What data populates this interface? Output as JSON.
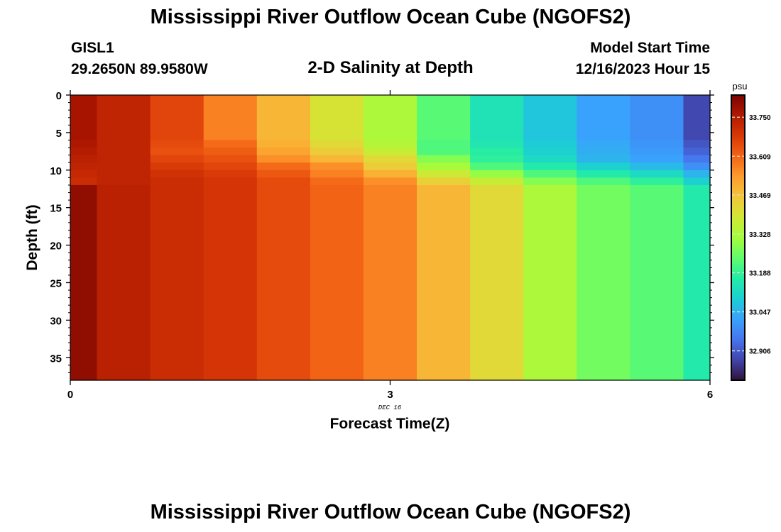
{
  "header": {
    "title": "Mississippi River Outflow Ocean Cube (NGOFS2)",
    "station": "GISL1",
    "coords": "29.2650N  89.9580W",
    "subtitle": "2-D Salinity at Depth",
    "start_label": "Model Start Time",
    "start_value": "12/16/2023 Hour 15"
  },
  "footer": {
    "title": "Mississippi River Outflow Ocean Cube (NGOFS2)"
  },
  "colors": {
    "colormap": [
      "#30123b",
      "#4145ab",
      "#4675ed",
      "#39a2fc",
      "#1bcfd4",
      "#24eca6",
      "#61fc6c",
      "#a4fc3b",
      "#d1e834",
      "#f3c63a",
      "#fe9b2d",
      "#f36315",
      "#d93806",
      "#b11901",
      "#7a0403"
    ]
  },
  "chart_data": {
    "type": "heatmap",
    "xlabel": "Forecast Time(Z)",
    "ylabel": "Depth (ft)",
    "x_ticks": [
      0,
      3,
      6
    ],
    "x_sublabel": "DEC 16",
    "y_ticks": [
      0,
      5,
      10,
      15,
      20,
      25,
      30,
      35
    ],
    "xlim": [
      0,
      6
    ],
    "ylim": [
      38,
      0
    ],
    "colorbar": {
      "unit": "psu",
      "ticks": [
        33.75,
        33.609,
        33.469,
        33.328,
        33.188,
        33.047,
        32.906
      ],
      "tick_labels": [
        "33.750",
        "33.609",
        "33.469",
        "33.328",
        "33.188",
        "33.047",
        "32.906"
      ],
      "range": [
        32.8,
        33.83
      ]
    },
    "time_hours": [
      0,
      0.5,
      1,
      1.5,
      2,
      2.5,
      3,
      3.5,
      4,
      4.5,
      5,
      5.5,
      6
    ],
    "depth_edges_ft": [
      0,
      6,
      7,
      8,
      9,
      10,
      11,
      12,
      38
    ],
    "salinity_psu": [
      [
        33.77,
        33.76,
        33.75,
        33.74,
        33.73,
        33.72,
        33.71,
        33.8
      ],
      [
        33.73,
        33.73,
        33.73,
        33.73,
        33.73,
        33.73,
        33.73,
        33.74
      ],
      [
        33.66,
        33.65,
        33.64,
        33.66,
        33.68,
        33.7,
        33.71,
        33.71
      ],
      [
        33.57,
        33.6,
        33.62,
        33.64,
        33.66,
        33.68,
        33.69,
        33.69
      ],
      [
        33.49,
        33.5,
        33.52,
        33.55,
        33.6,
        33.63,
        33.65,
        33.65
      ],
      [
        33.4,
        33.42,
        33.45,
        33.49,
        33.55,
        33.57,
        33.6,
        33.61
      ],
      [
        33.33,
        33.34,
        33.37,
        33.42,
        33.45,
        33.5,
        33.55,
        33.57
      ],
      [
        33.23,
        33.22,
        33.22,
        33.28,
        33.32,
        33.38,
        33.44,
        33.49
      ],
      [
        33.14,
        33.15,
        33.17,
        33.18,
        33.22,
        33.3,
        33.37,
        33.42
      ],
      [
        33.08,
        33.09,
        33.1,
        33.12,
        33.16,
        33.22,
        33.28,
        33.33
      ],
      [
        33.02,
        33.03,
        33.04,
        33.05,
        33.1,
        33.16,
        33.22,
        33.26
      ],
      [
        32.99,
        33.0,
        33.01,
        33.02,
        33.06,
        33.12,
        33.18,
        33.23
      ],
      [
        32.88,
        32.9,
        32.92,
        32.95,
        32.99,
        33.05,
        33.1,
        33.16
      ]
    ]
  }
}
